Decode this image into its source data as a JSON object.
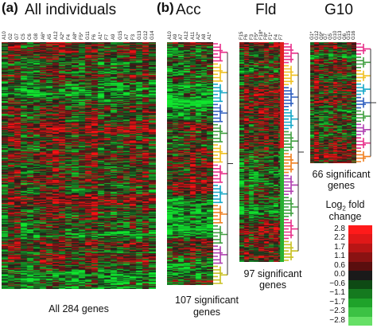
{
  "panel_a": {
    "letter": "(a)",
    "title": "All individuals",
    "columns": [
      "A10",
      "G2",
      "G7",
      "C5",
      "C6",
      "G8",
      "A6*",
      "A5",
      "A12",
      "A2*",
      "F4",
      "A8*",
      "F5*",
      "G11",
      "F6",
      "A1*",
      "F7",
      "A9",
      "G15",
      "A7",
      "F3",
      "G13",
      "G12",
      "G14"
    ],
    "caption": "All 284 genes"
  },
  "panel_b": {
    "letter": "(b)",
    "heatmaps": [
      {
        "title": "Acc",
        "columns": [
          "A10",
          "A9",
          "A7",
          "A12",
          "A11",
          "A2*",
          "A8",
          "A1*"
        ],
        "caption_line1": "107 significant",
        "caption_line2": "genes",
        "cluster_colors": [
          "#e8308a",
          "#f0c020",
          "#16a8c8",
          "#3060c0",
          "#40a040",
          "#f0c020",
          "#e8308a",
          "#16a8c8",
          "#f08020",
          "#40a040",
          "#b040b0",
          "#c8c020"
        ]
      },
      {
        "title": "Fld",
        "columns": [
          "F15",
          "F6",
          "F3",
          "F5*",
          "F18*",
          "F8*",
          "F1*",
          "F4",
          "F7"
        ],
        "caption_line1": "97 significant",
        "caption_line2": "genes",
        "cluster_colors": [
          "#e8308a",
          "#f0c020",
          "#3060c0",
          "#16a8c8",
          "#40a040",
          "#f08020",
          "#b040b0",
          "#40a040",
          "#e8308a",
          "#c8c020"
        ]
      },
      {
        "title": "G10",
        "columns": [
          "G1*",
          "G12",
          "G9*",
          "G7",
          "G5",
          "G10",
          "G13",
          "G6",
          "G15",
          "G16"
        ],
        "caption_line1": "66 significant",
        "caption_line2": "genes",
        "cluster_colors": [
          "#e8308a",
          "#40a040",
          "#f0c020",
          "#16a8c8",
          "#3060c0",
          "#40a040",
          "#b040b0",
          "#e8308a",
          "#f08020"
        ]
      }
    ]
  },
  "color_scale": {
    "title_line1": "Log",
    "title_sub": "2",
    "title_rest": " fold",
    "title_line2": "change",
    "labels": [
      "2.8",
      "2.2",
      "1.7",
      "1.1",
      "0.6",
      "0.0",
      "−0.6",
      "−1.1",
      "−1.7",
      "−2.3",
      "−2.8"
    ],
    "colors": [
      "#ff1a1a",
      "#e01818",
      "#b81515",
      "#8a1212",
      "#5a0e0e",
      "#1a1a1a",
      "#0e4a14",
      "#157a1f",
      "#1fa32a",
      "#3cc244",
      "#66e066"
    ]
  }
}
